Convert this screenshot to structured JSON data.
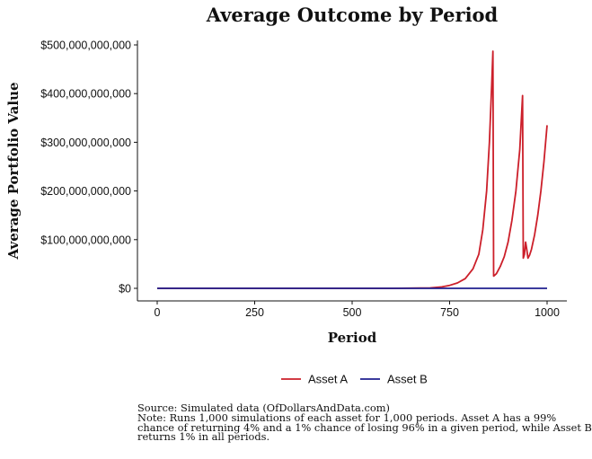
{
  "chart_data": {
    "type": "line",
    "title": "Average Outcome by Period",
    "xlabel": "Period",
    "ylabel": "Average Portfolio Value",
    "xlim": [
      0,
      1000
    ],
    "ylim": [
      0,
      500000000000
    ],
    "x_ticks": [
      0,
      250,
      500,
      750,
      1000
    ],
    "x_tick_labels": [
      "0",
      "250",
      "500",
      "750",
      "1000"
    ],
    "y_ticks": [
      0,
      100000000000,
      200000000000,
      300000000000,
      400000000000,
      500000000000
    ],
    "y_tick_labels": [
      "$0",
      "$100,000,000,000",
      "$200,000,000,000",
      "$300,000,000,000",
      "$400,000,000,000",
      "$500,000,000,000"
    ],
    "grid": false,
    "legend_position": "bottom",
    "series": [
      {
        "name": "Asset A",
        "color": "#cc1f2a",
        "points": [
          [
            0,
            0
          ],
          [
            600,
            0
          ],
          [
            700,
            1000000000
          ],
          [
            730,
            3000000000
          ],
          [
            750,
            6000000000
          ],
          [
            770,
            11000000000
          ],
          [
            790,
            20000000000
          ],
          [
            810,
            40000000000
          ],
          [
            825,
            70000000000
          ],
          [
            835,
            120000000000
          ],
          [
            845,
            200000000000
          ],
          [
            852,
            300000000000
          ],
          [
            858,
            420000000000
          ],
          [
            861,
            487000000000
          ],
          [
            863,
            25000000000
          ],
          [
            870,
            30000000000
          ],
          [
            880,
            45000000000
          ],
          [
            890,
            65000000000
          ],
          [
            900,
            95000000000
          ],
          [
            910,
            140000000000
          ],
          [
            920,
            200000000000
          ],
          [
            930,
            285000000000
          ],
          [
            937,
            396000000000
          ],
          [
            939,
            62000000000
          ],
          [
            942,
            70000000000
          ],
          [
            945,
            95000000000
          ],
          [
            948,
            80000000000
          ],
          [
            951,
            62000000000
          ],
          [
            955,
            68000000000
          ],
          [
            960,
            80000000000
          ],
          [
            968,
            110000000000
          ],
          [
            976,
            150000000000
          ],
          [
            984,
            200000000000
          ],
          [
            992,
            260000000000
          ],
          [
            1000,
            335000000000
          ]
        ]
      },
      {
        "name": "Asset B",
        "color": "#1f1f8f",
        "points": [
          [
            0,
            0
          ],
          [
            1000,
            21000000
          ]
        ]
      }
    ]
  },
  "notes": {
    "source": "Source:  Simulated data (OfDollarsAndData.com)",
    "line1": "Note: Runs 1,000 simulations of each asset for 1,000 periods. Asset A has a 99%",
    "line2": "chance of returning 4% and a 1% chance of losing 96% in a given period, while Asset B",
    "line3": "returns 1% in all periods."
  }
}
